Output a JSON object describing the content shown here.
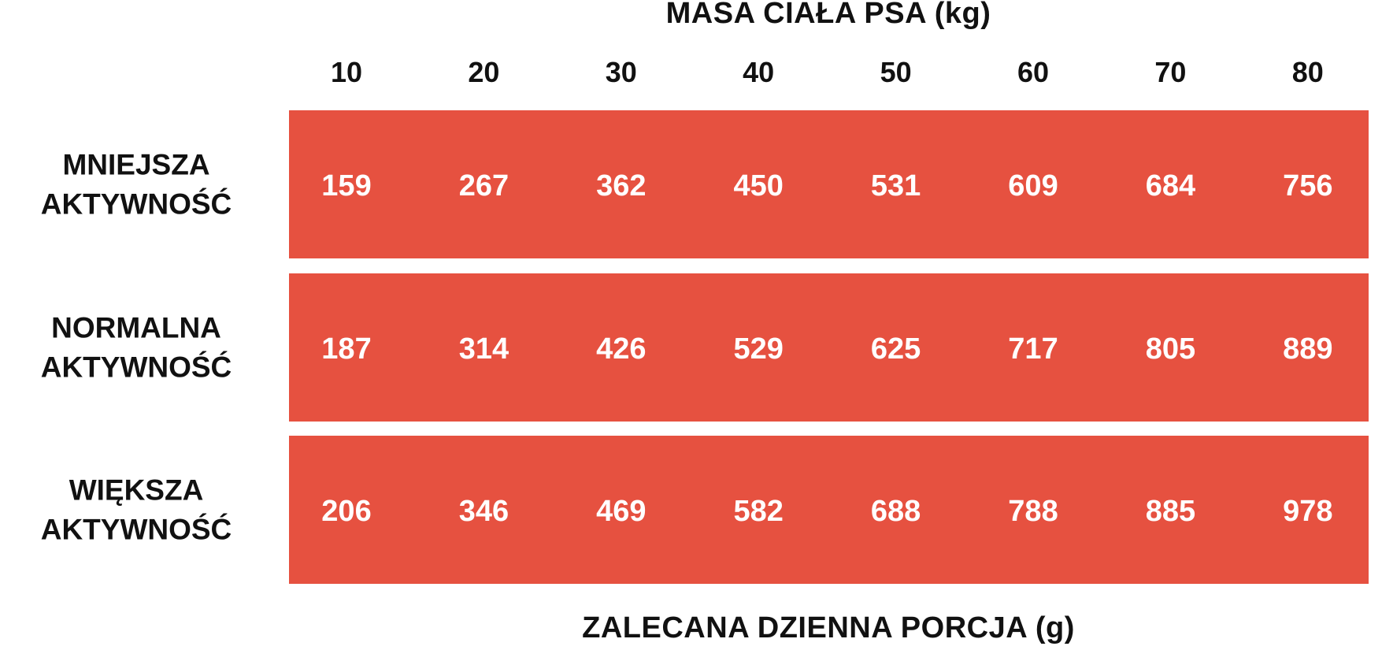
{
  "header": {
    "title": "MASA CIAŁA PSA (kg)",
    "columns": [
      10,
      20,
      30,
      40,
      50,
      60,
      70,
      80
    ]
  },
  "table": {
    "rows": [
      {
        "label": [
          "MNIEJSZA",
          "AKTYWNOŚĆ"
        ],
        "values": [
          159,
          267,
          362,
          450,
          531,
          609,
          684,
          756
        ]
      },
      {
        "label": [
          "NORMALNA",
          "AKTYWNOŚĆ"
        ],
        "values": [
          187,
          314,
          426,
          529,
          625,
          717,
          805,
          889
        ]
      },
      {
        "label": [
          "WIĘKSZA",
          "AKTYWNOŚĆ"
        ],
        "values": [
          206,
          346,
          469,
          582,
          688,
          788,
          885,
          978
        ]
      }
    ]
  },
  "footer": {
    "caption": "ZALECANA DZIENNA PORCJA (g)"
  }
}
